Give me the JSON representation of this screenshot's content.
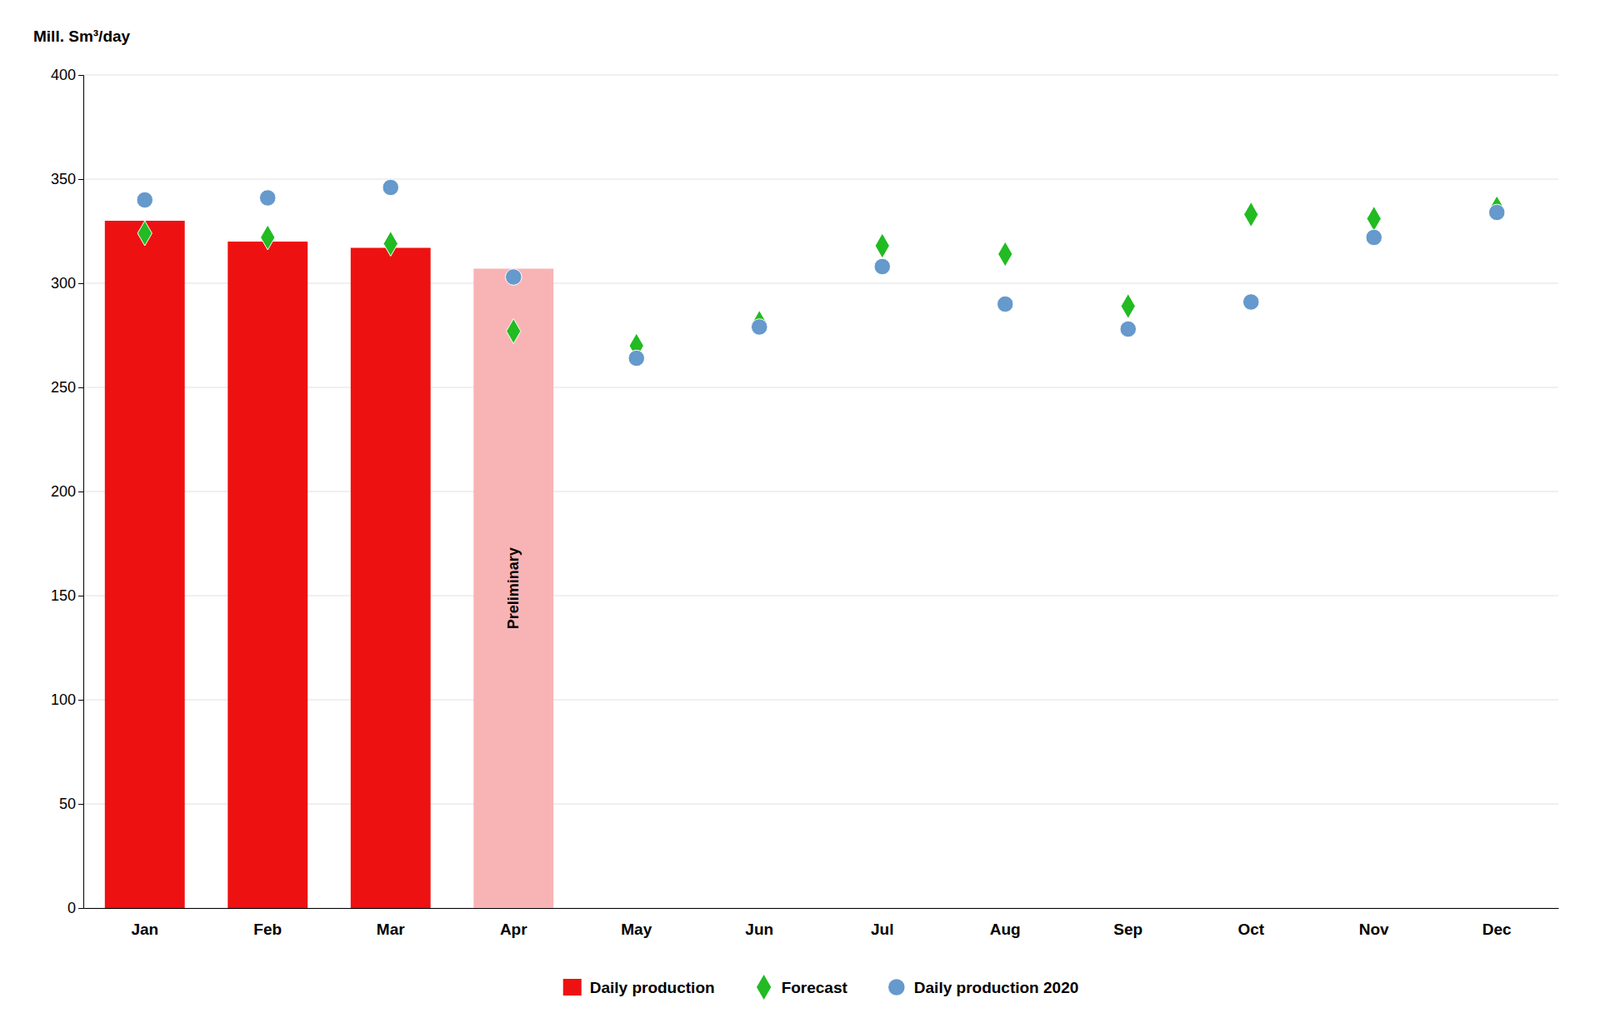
{
  "chart_data": {
    "type": "bar",
    "y_label": "Mill. Sm³/day",
    "categories": [
      "Jan",
      "Feb",
      "Mar",
      "Apr",
      "May",
      "Jun",
      "Jul",
      "Aug",
      "Sep",
      "Oct",
      "Nov",
      "Dec"
    ],
    "series": [
      {
        "name": "Daily production",
        "type": "bar",
        "color": "#ee1111",
        "colors": [
          "#ee1111",
          "#ee1111",
          "#ee1111",
          "#f8b4b4"
        ],
        "values": [
          330,
          320,
          317,
          307,
          null,
          null,
          null,
          null,
          null,
          null,
          null,
          null
        ]
      },
      {
        "name": "Forecast",
        "type": "scatter",
        "marker": "diamond",
        "color": "#22bb22",
        "values": [
          324,
          322,
          319,
          277,
          270,
          281,
          318,
          314,
          289,
          333,
          331,
          336
        ]
      },
      {
        "name": "Daily production 2020",
        "type": "scatter",
        "marker": "circle",
        "color": "#6699cc",
        "values": [
          340,
          341,
          346,
          303,
          264,
          279,
          308,
          290,
          278,
          291,
          322,
          334
        ]
      }
    ],
    "annotations": [
      {
        "text": "Preliminary",
        "category": "Apr"
      }
    ],
    "ylim": [
      0,
      400
    ],
    "yticks": [
      0,
      50,
      100,
      150,
      200,
      250,
      300,
      350,
      400
    ],
    "grid": true,
    "legend": "bottom"
  }
}
